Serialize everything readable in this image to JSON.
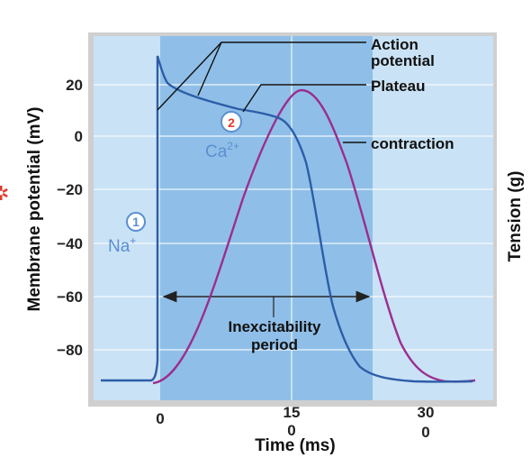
{
  "chart_data": {
    "type": "line",
    "xlabel": "Time (ms)",
    "ylabel_left": "Membrane potential (mV)",
    "ylabel_right": "Tension (g)",
    "x_ticks_top": [
      "0",
      "15",
      "30"
    ],
    "x_ticks_bottom": [
      "0",
      "0"
    ],
    "y_ticks": [
      "20",
      "0",
      "−20",
      "−40",
      "−60",
      "−80"
    ],
    "ylim": [
      -90,
      30
    ],
    "grid": true,
    "series": [
      {
        "key": "membrane_potential",
        "color": "#2c5da8"
      },
      {
        "key": "tension",
        "color": "#9b2d8f"
      }
    ]
  },
  "labels": {
    "action_potential_line1": "Action",
    "action_potential_line2": "potential",
    "plateau": "Plateau",
    "contraction": "contraction",
    "inexcitability_line1": "Inexcitability",
    "inexcitability_line2": "period"
  },
  "markers": {
    "one": {
      "number": "1",
      "ion": "Na",
      "ion_sup": "+"
    },
    "two": {
      "number": "2",
      "ion": "Ca",
      "ion_sup": "2+"
    }
  },
  "colors": {
    "plot_bg": "#c9e2f5",
    "shaded_period": "#8fbfe8",
    "frame": "#cfcfcf",
    "membrane": "#2c5da8",
    "tension": "#9b2d8f",
    "badge_one": "#5b8fd0",
    "badge_two": "#e03a2f",
    "star": "#e03a2f"
  }
}
